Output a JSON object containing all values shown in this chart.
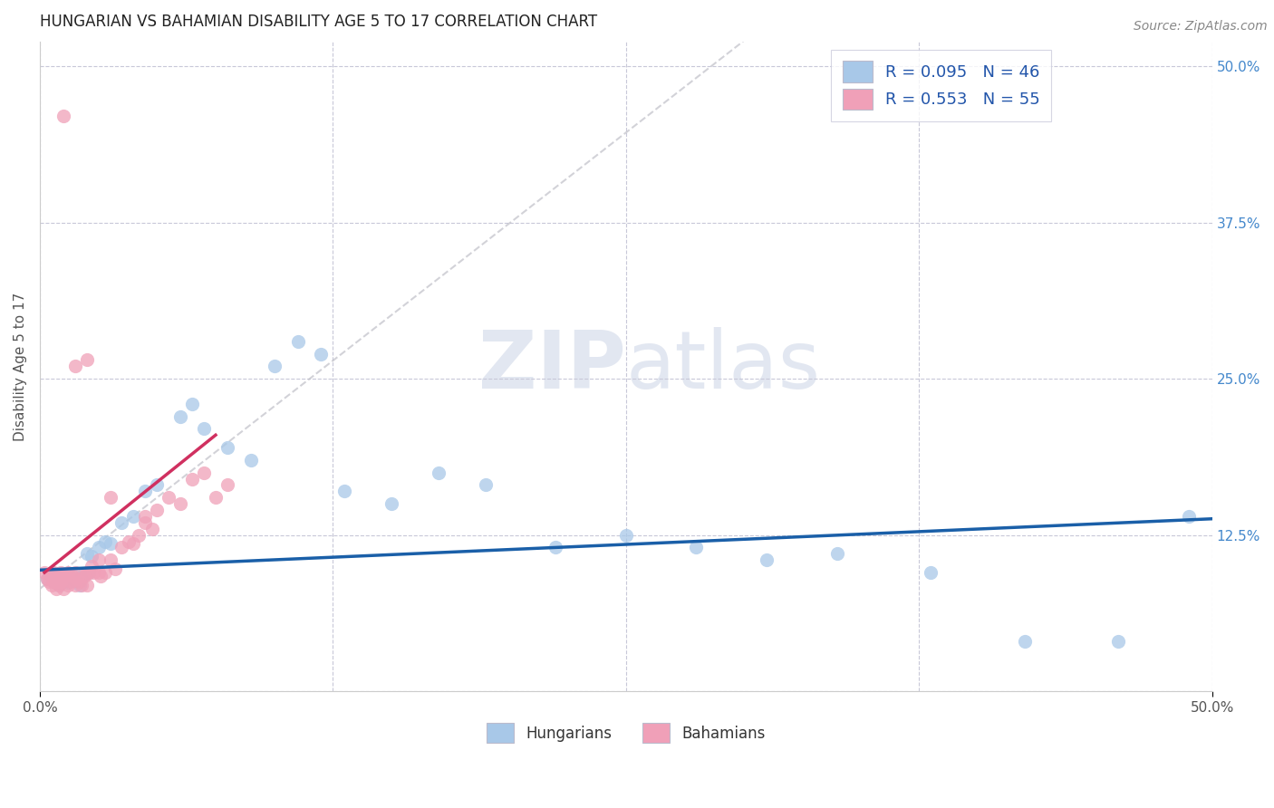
{
  "title": "HUNGARIAN VS BAHAMIAN DISABILITY AGE 5 TO 17 CORRELATION CHART",
  "source": "Source: ZipAtlas.com",
  "ylabel": "Disability Age 5 to 17",
  "xlim": [
    0.0,
    0.5
  ],
  "ylim": [
    0.0,
    0.52
  ],
  "hungarian_R": "0.095",
  "hungarian_N": "46",
  "bahamian_R": "0.553",
  "bahamian_N": "55",
  "hungarian_color": "#a8c8e8",
  "bahamian_color": "#f0a0b8",
  "hungarian_line_color": "#1a5fa8",
  "bahamian_line_color": "#d03060",
  "grid_color": "#c8c8d8",
  "bg_color": "#ffffff",
  "title_color": "#222222",
  "right_label_color": "#4488cc",
  "tick_label_color": "#555555",
  "watermark_color": "#d0d8e8",
  "legend_text_color": "#2255aa",
  "hung_line_x0": 0.0,
  "hung_line_y0": 0.097,
  "hung_line_x1": 0.5,
  "hung_line_y1": 0.138,
  "bah_line_solid_x0": 0.002,
  "bah_line_solid_y0": 0.095,
  "bah_line_solid_x1": 0.075,
  "bah_line_solid_y1": 0.205,
  "bah_line_dash_x0": 0.0,
  "bah_line_dash_y0": 0.082,
  "bah_line_dash_x1": 0.3,
  "bah_line_dash_y1": 0.52,
  "hung_x": [
    0.003,
    0.005,
    0.006,
    0.007,
    0.008,
    0.009,
    0.01,
    0.011,
    0.012,
    0.013,
    0.015,
    0.016,
    0.017,
    0.018,
    0.019,
    0.02,
    0.021,
    0.022,
    0.025,
    0.028,
    0.03,
    0.035,
    0.04,
    0.045,
    0.05,
    0.06,
    0.065,
    0.07,
    0.08,
    0.09,
    0.1,
    0.11,
    0.12,
    0.13,
    0.15,
    0.17,
    0.19,
    0.22,
    0.25,
    0.28,
    0.31,
    0.34,
    0.38,
    0.42,
    0.46,
    0.49
  ],
  "hung_y": [
    0.09,
    0.095,
    0.088,
    0.092,
    0.085,
    0.091,
    0.088,
    0.093,
    0.087,
    0.09,
    0.092,
    0.088,
    0.085,
    0.091,
    0.094,
    0.11,
    0.095,
    0.108,
    0.115,
    0.12,
    0.118,
    0.135,
    0.14,
    0.16,
    0.165,
    0.22,
    0.23,
    0.21,
    0.195,
    0.185,
    0.26,
    0.28,
    0.27,
    0.16,
    0.15,
    0.175,
    0.165,
    0.115,
    0.125,
    0.115,
    0.105,
    0.11,
    0.095,
    0.04,
    0.04,
    0.14
  ],
  "bah_x": [
    0.002,
    0.003,
    0.004,
    0.005,
    0.005,
    0.006,
    0.006,
    0.007,
    0.007,
    0.008,
    0.008,
    0.009,
    0.009,
    0.01,
    0.01,
    0.011,
    0.012,
    0.012,
    0.013,
    0.014,
    0.015,
    0.015,
    0.016,
    0.017,
    0.018,
    0.019,
    0.02,
    0.02,
    0.021,
    0.022,
    0.023,
    0.025,
    0.025,
    0.026,
    0.028,
    0.03,
    0.032,
    0.035,
    0.038,
    0.04,
    0.042,
    0.045,
    0.048,
    0.05,
    0.055,
    0.06,
    0.065,
    0.07,
    0.075,
    0.08,
    0.01,
    0.015,
    0.02,
    0.03,
    0.045
  ],
  "bah_y": [
    0.095,
    0.09,
    0.088,
    0.085,
    0.092,
    0.088,
    0.095,
    0.082,
    0.09,
    0.085,
    0.092,
    0.088,
    0.095,
    0.082,
    0.09,
    0.092,
    0.085,
    0.095,
    0.088,
    0.092,
    0.085,
    0.095,
    0.09,
    0.088,
    0.085,
    0.092,
    0.085,
    0.095,
    0.095,
    0.1,
    0.095,
    0.095,
    0.105,
    0.092,
    0.095,
    0.105,
    0.098,
    0.115,
    0.12,
    0.118,
    0.125,
    0.135,
    0.13,
    0.145,
    0.155,
    0.15,
    0.17,
    0.175,
    0.155,
    0.165,
    0.46,
    0.26,
    0.265,
    0.155,
    0.14
  ]
}
